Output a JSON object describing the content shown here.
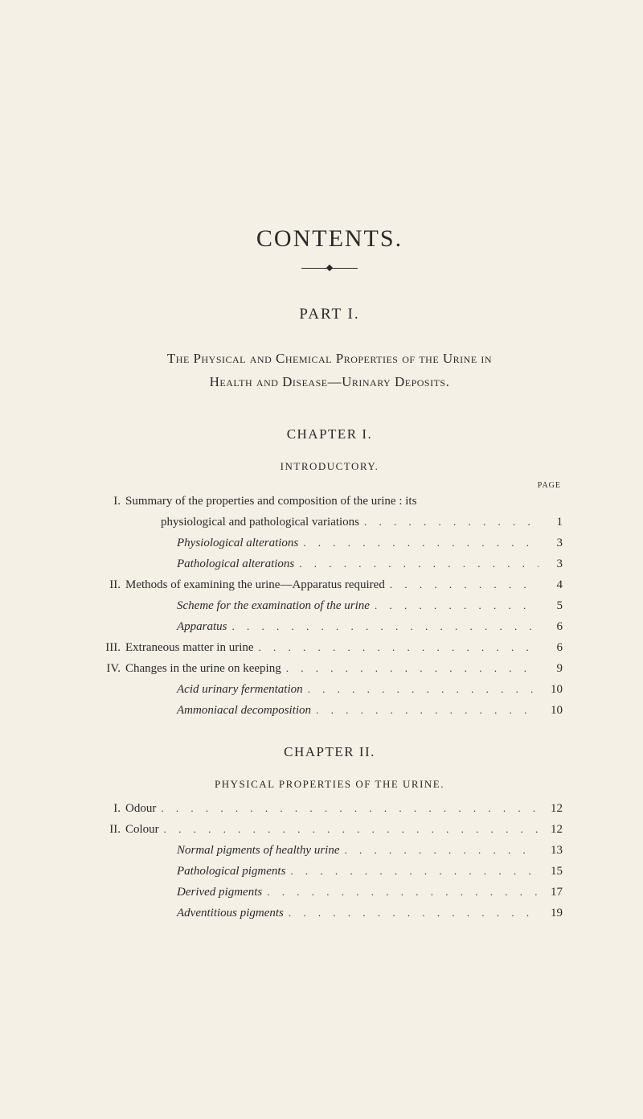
{
  "colors": {
    "background": "#f4f0e6",
    "text": "#2a2a2a"
  },
  "title": "CONTENTS.",
  "part": {
    "label": "PART I.",
    "description_line1": "The Physical and Chemical Properties of the Urine in",
    "description_line2": "Health and Disease—Urinary Deposits."
  },
  "page_label": "PAGE",
  "leader_dots": ". . . . . . . . . . . . . . . . . . . . . . . . . . . . . .",
  "chapters": [
    {
      "heading": "CHAPTER I.",
      "subtitle": "INTRODUCTORY.",
      "entries": [
        {
          "roman": "I.",
          "text_a": "Summary of the properties and composition of the urine : its",
          "text_b": "physiological and pathological variations",
          "page": "1"
        },
        {
          "sub": true,
          "text": "Physiological alterations",
          "page": "3"
        },
        {
          "sub": true,
          "text": "Pathological alterations",
          "page": "3"
        },
        {
          "roman": "II.",
          "text_a": "Methods of examining the urine—Apparatus required",
          "page": "4"
        },
        {
          "sub": true,
          "text": "Scheme for the examination of the urine",
          "page": "5"
        },
        {
          "sub": true,
          "text": "Apparatus",
          "page": "6"
        },
        {
          "roman": "III.",
          "text_a": "Extraneous matter in urine",
          "page": "6"
        },
        {
          "roman": "IV.",
          "text_a": "Changes in the urine on keeping",
          "page": "9"
        },
        {
          "sub": true,
          "text": "Acid urinary fermentation",
          "page": "10"
        },
        {
          "sub": true,
          "text": "Ammoniacal decomposition",
          "page": "10"
        }
      ]
    },
    {
      "heading": "CHAPTER II.",
      "subtitle": "PHYSICAL PROPERTIES OF THE URINE.",
      "entries": [
        {
          "roman": "I.",
          "text_a": "Odour",
          "page": "12"
        },
        {
          "roman": "II.",
          "text_a": "Colour",
          "page": "12"
        },
        {
          "sub": true,
          "text": "Normal pigments of healthy urine",
          "page": "13"
        },
        {
          "sub": true,
          "text": "Pathological pigments",
          "page": "15"
        },
        {
          "sub": true,
          "text": "Derived pigments",
          "page": "17"
        },
        {
          "sub": true,
          "text": "Adventitious pigments",
          "page": "19"
        }
      ]
    }
  ]
}
